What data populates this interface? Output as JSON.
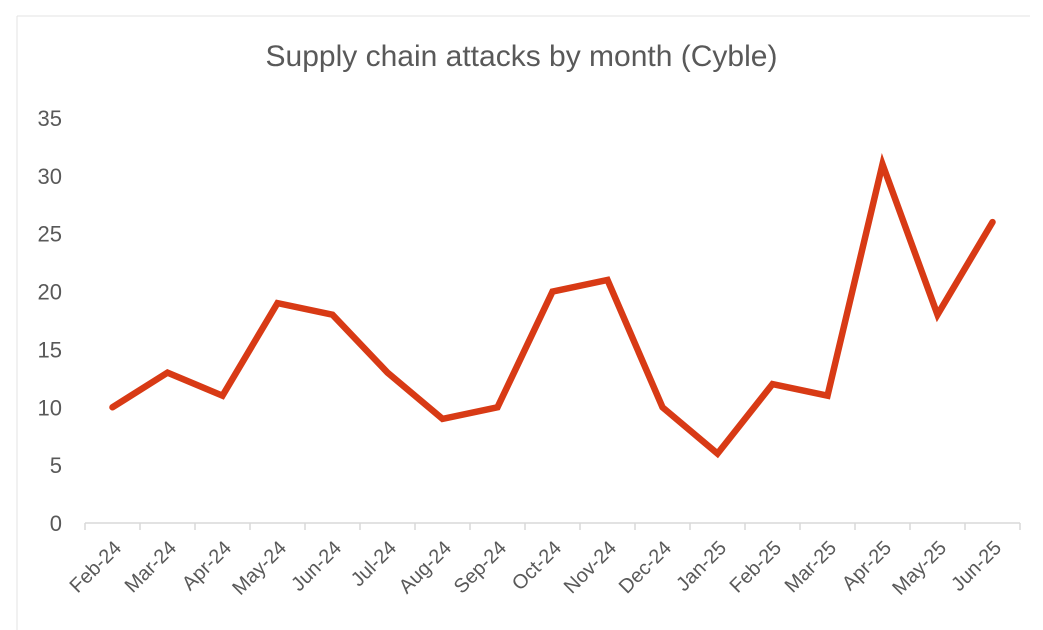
{
  "chart_data": {
    "type": "line",
    "title": "Supply chain attacks by month (Cyble)",
    "xlabel": "",
    "ylabel": "",
    "categories": [
      "Feb-24",
      "Mar-24",
      "Apr-24",
      "May-24",
      "Jun-24",
      "Jul-24",
      "Aug-24",
      "Sep-24",
      "Oct-24",
      "Nov-24",
      "Dec-24",
      "Jan-25",
      "Feb-25",
      "Mar-25",
      "Apr-25",
      "May-25",
      "Jun-25"
    ],
    "series": [
      {
        "values": [
          10,
          13,
          11,
          19,
          18,
          13,
          9,
          10,
          20,
          21,
          10,
          6,
          12,
          11,
          31,
          18,
          26
        ],
        "color": "#d83a15"
      }
    ],
    "ylim": [
      0,
      35
    ],
    "yticks": [
      0,
      5,
      10,
      15,
      20,
      25,
      30,
      35
    ],
    "grid": false,
    "legend": "none"
  }
}
